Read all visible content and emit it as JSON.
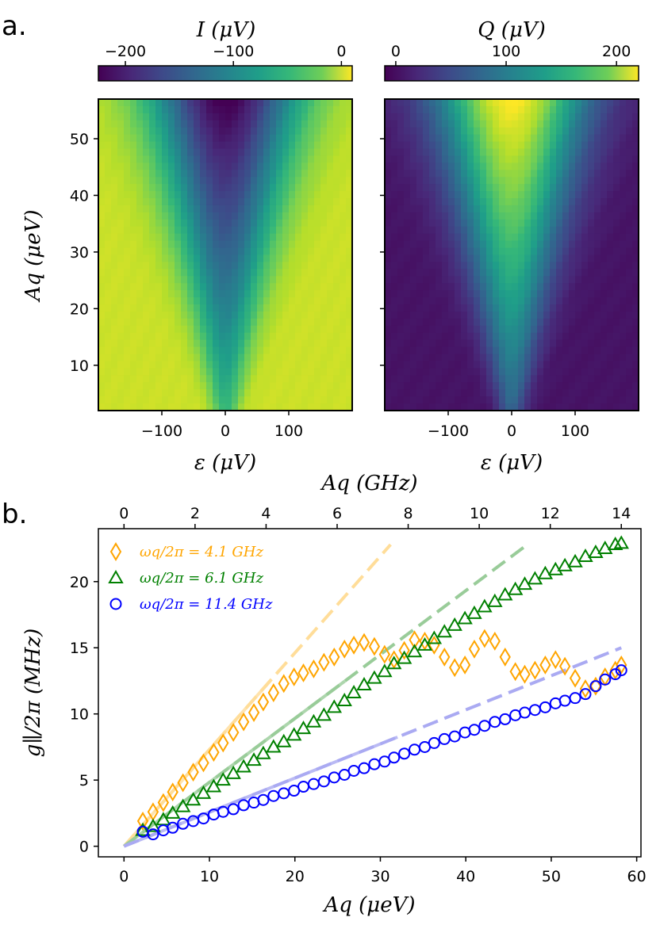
{
  "panel_a": {
    "letter": "a.",
    "colorbar_I": {
      "label": "I (μV)",
      "ticks": [
        "−200",
        "−100",
        "0"
      ],
      "tick_values": [
        -200,
        -100,
        0
      ],
      "range": [
        -225,
        10
      ]
    },
    "colorbar_Q": {
      "label": "Q (μV)",
      "ticks": [
        "0",
        "100",
        "200"
      ],
      "tick_values": [
        0,
        100,
        200
      ],
      "range": [
        -10,
        220
      ]
    },
    "heatmap_I": {
      "xlabel": "ε (μV)",
      "ylabel": "Aq (μeV)"
    },
    "heatmap_Q": {
      "xlabel": "ε (μV)"
    },
    "x_ticks": [
      "−100",
      "0",
      "100"
    ],
    "x_tick_values": [
      -100,
      0,
      100
    ],
    "y_ticks": [
      "10",
      "20",
      "30",
      "40",
      "50"
    ],
    "y_tick_values": [
      10,
      20,
      30,
      40,
      50
    ]
  },
  "panel_b": {
    "letter": "b."
  },
  "chart_data": [
    {
      "type": "heatmap",
      "title": "",
      "xlabel": "ε (μV)",
      "ylabel": "Aq (μeV)",
      "colorbar_label": "I (μV)",
      "xlim": [
        -200,
        200
      ],
      "ylim": [
        2,
        57
      ],
      "zlim": [
        -225,
        10
      ],
      "colormap": "viridis",
      "pattern": "V-shaped dip centered at ε=0, depth grows with Aq (~−60 μV at Aq≈5, ~−215 μV at Aq≈55), background ≈ −10 μV"
    },
    {
      "type": "heatmap",
      "title": "",
      "xlabel": "ε (μV)",
      "ylabel": "",
      "colorbar_label": "Q (μV)",
      "xlim": [
        -200,
        200
      ],
      "ylim": [
        2,
        57
      ],
      "zlim": [
        -10,
        220
      ],
      "colormap": "viridis",
      "pattern": "V-shaped peak centered at ε=0, height grows with Aq (~60 μV at Aq≈5, ~215 μV at Aq≈55), background ≈ 0 μV"
    },
    {
      "type": "scatter",
      "title": "",
      "xlabel": "Aq (μeV)",
      "x2label": "Aq (GHz)",
      "ylabel": "g∥/2π (MHz)",
      "xlim": [
        -3,
        60.5
      ],
      "ylim": [
        -0.8,
        24
      ],
      "x_ticks": [
        "0",
        "10",
        "20",
        "30",
        "40",
        "50",
        "60"
      ],
      "x_tick_values": [
        0,
        10,
        20,
        30,
        40,
        50,
        60
      ],
      "x2_ticks": [
        "0",
        "2",
        "4",
        "6",
        "8",
        "10",
        "12",
        "14"
      ],
      "x2_tick_values": [
        0,
        2,
        4,
        6,
        8,
        10,
        12,
        14
      ],
      "y_ticks": [
        "0",
        "5",
        "10",
        "15",
        "20"
      ],
      "y_tick_values": [
        0,
        5,
        10,
        15,
        20
      ],
      "legend_position": "top-left",
      "series": [
        {
          "name": "ωq/2π = 4.1 GHz",
          "marker": "diamond",
          "color": "#ffa500",
          "x": [
            2.2,
            3.4,
            4.6,
            5.7,
            6.9,
            8.1,
            9.3,
            10.5,
            11.6,
            12.8,
            14.0,
            15.2,
            16.3,
            17.5,
            18.7,
            19.9,
            21.0,
            22.2,
            23.4,
            24.6,
            25.8,
            26.9,
            28.1,
            29.3,
            30.5,
            31.6,
            32.8,
            34.0,
            35.2,
            36.3,
            37.5,
            38.7,
            39.9,
            41.0,
            42.2,
            43.4,
            44.6,
            45.8,
            46.9,
            48.1,
            49.3,
            50.5,
            51.6,
            52.8,
            54.0,
            55.2,
            56.3,
            57.5,
            58.2
          ],
          "y": [
            1.9,
            2.6,
            3.3,
            4.1,
            4.8,
            5.6,
            6.3,
            7.1,
            7.8,
            8.6,
            9.4,
            10.1,
            10.9,
            11.6,
            12.3,
            12.8,
            13.1,
            13.4,
            13.9,
            14.3,
            14.9,
            15.2,
            15.4,
            15.1,
            14.5,
            14.1,
            14.8,
            15.6,
            15.5,
            15.2,
            14.3,
            13.5,
            13.7,
            14.9,
            15.7,
            15.5,
            14.3,
            13.2,
            13.0,
            13.3,
            13.7,
            14.1,
            13.6,
            12.7,
            11.9,
            12.1,
            12.8,
            13.3,
            13.7
          ]
        },
        {
          "name": "ωq/2π = 6.1 GHz",
          "marker": "triangle",
          "color": "#008000",
          "x": [
            2.2,
            3.4,
            4.6,
            5.7,
            6.9,
            8.1,
            9.3,
            10.5,
            11.6,
            12.8,
            14.0,
            15.2,
            16.3,
            17.5,
            18.7,
            19.9,
            21.0,
            22.2,
            23.4,
            24.6,
            25.8,
            26.9,
            28.1,
            29.3,
            30.5,
            31.6,
            32.8,
            34.0,
            35.2,
            36.3,
            37.5,
            38.7,
            39.9,
            41.0,
            42.2,
            43.4,
            44.6,
            45.8,
            46.9,
            48.1,
            49.3,
            50.5,
            51.6,
            52.8,
            54.0,
            55.2,
            56.3,
            57.5,
            58.2
          ],
          "y": [
            1.2,
            1.5,
            2.0,
            2.5,
            3.0,
            3.5,
            4.0,
            4.5,
            5.0,
            5.5,
            6.0,
            6.5,
            7.0,
            7.5,
            7.9,
            8.4,
            8.9,
            9.4,
            9.9,
            10.5,
            11.0,
            11.6,
            12.2,
            12.7,
            13.2,
            13.8,
            14.2,
            14.7,
            15.2,
            15.7,
            16.2,
            16.7,
            17.2,
            17.6,
            18.1,
            18.5,
            19.0,
            19.4,
            19.8,
            20.2,
            20.6,
            20.9,
            21.2,
            21.5,
            21.9,
            22.2,
            22.5,
            22.8,
            22.9
          ]
        },
        {
          "name": "ωq/2π = 11.4 GHz",
          "marker": "circle",
          "color": "#0000ff",
          "x": [
            2.2,
            3.4,
            4.6,
            5.7,
            6.9,
            8.1,
            9.3,
            10.5,
            11.6,
            12.8,
            14.0,
            15.2,
            16.3,
            17.5,
            18.7,
            19.9,
            21.0,
            22.2,
            23.4,
            24.6,
            25.8,
            26.9,
            28.1,
            29.3,
            30.5,
            31.6,
            32.8,
            34.0,
            35.2,
            36.3,
            37.5,
            38.7,
            39.9,
            41.0,
            42.2,
            43.4,
            44.6,
            45.8,
            46.9,
            48.1,
            49.3,
            50.5,
            51.6,
            52.8,
            54.0,
            55.2,
            56.3,
            57.5,
            58.2
          ],
          "y": [
            1.1,
            0.9,
            1.2,
            1.4,
            1.7,
            1.9,
            2.1,
            2.4,
            2.6,
            2.8,
            3.1,
            3.3,
            3.5,
            3.8,
            4.0,
            4.2,
            4.5,
            4.7,
            4.9,
            5.2,
            5.4,
            5.7,
            5.9,
            6.2,
            6.4,
            6.7,
            7.0,
            7.3,
            7.5,
            7.8,
            8.1,
            8.3,
            8.6,
            8.8,
            9.1,
            9.4,
            9.6,
            9.9,
            10.1,
            10.3,
            10.5,
            10.8,
            11.0,
            11.2,
            11.5,
            12.1,
            12.6,
            13.0,
            13.3
          ]
        }
      ],
      "fit_lines": [
        {
          "series": "ωq/2π = 4.1 GHz",
          "color": "#ffdd99",
          "x": [
            0,
            31.2
          ],
          "y": [
            0,
            22.8
          ]
        },
        {
          "series": "ωq/2π = 6.1 GHz",
          "color": "#99cc99",
          "x": [
            0,
            47.0
          ],
          "y": [
            0,
            22.7
          ]
        },
        {
          "series": "ωq/2π = 11.4 GHz",
          "color": "#aaaaf2",
          "x": [
            0,
            58.2
          ],
          "y": [
            0,
            15.0
          ]
        }
      ]
    }
  ]
}
